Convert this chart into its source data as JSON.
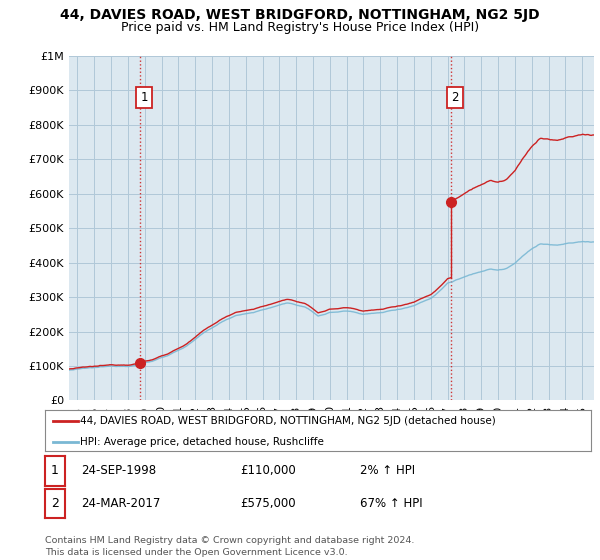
{
  "title": "44, DAVIES ROAD, WEST BRIDGFORD, NOTTINGHAM, NG2 5JD",
  "subtitle": "Price paid vs. HM Land Registry's House Price Index (HPI)",
  "ytick_values": [
    0,
    100000,
    200000,
    300000,
    400000,
    500000,
    600000,
    700000,
    800000,
    900000,
    1000000
  ],
  "ylim": [
    0,
    1000000
  ],
  "xlim_start": 1994.5,
  "xlim_end": 2025.7,
  "hpi_color": "#7ab8d4",
  "property_color": "#cc2222",
  "sale1_x": 1998.73,
  "sale1_y": 110000,
  "sale2_x": 2017.23,
  "sale2_y": 575000,
  "vline_color": "#cc2222",
  "legend_label1": "44, DAVIES ROAD, WEST BRIDGFORD, NOTTINGHAM, NG2 5JD (detached house)",
  "legend_label2": "HPI: Average price, detached house, Rushcliffe",
  "table_row1": [
    "1",
    "24-SEP-1998",
    "£110,000",
    "2% ↑ HPI"
  ],
  "table_row2": [
    "2",
    "24-MAR-2017",
    "£575,000",
    "67% ↑ HPI"
  ],
  "footnote": "Contains HM Land Registry data © Crown copyright and database right 2024.\nThis data is licensed under the Open Government Licence v3.0.",
  "plot_bg_color": "#dce8f0",
  "fig_bg_color": "#ffffff",
  "grid_color": "#b0c8d8",
  "title_fontsize": 10,
  "subtitle_fontsize": 9,
  "tick_fontsize": 8
}
